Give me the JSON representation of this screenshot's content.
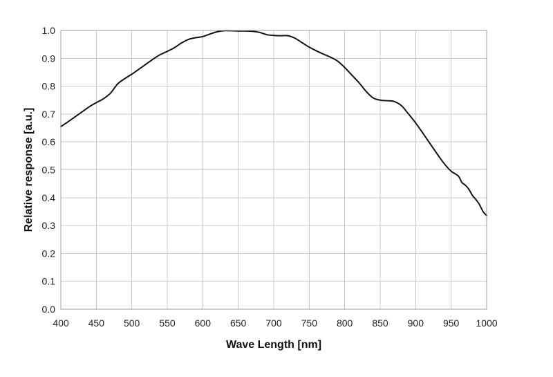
{
  "chart_data": {
    "type": "line",
    "title": "",
    "xlabel": "Wave Length [nm]",
    "ylabel": "Relative response [a.u.]",
    "xlim": [
      400,
      1000
    ],
    "ylim": [
      0.0,
      1.0
    ],
    "x_ticks": [
      "400",
      "450",
      "500",
      "550",
      "600",
      "650",
      "700",
      "750",
      "800",
      "850",
      "900",
      "950",
      "1000"
    ],
    "y_ticks": [
      "0.0",
      "0.1",
      "0.2",
      "0.3",
      "0.4",
      "0.5",
      "0.6",
      "0.7",
      "0.8",
      "0.9",
      "1.0"
    ],
    "grid": true,
    "legend": "none",
    "series": [
      {
        "color": "#111111",
        "x": [
          400,
          410,
          420,
          430,
          440,
          450,
          460,
          470,
          480,
          490,
          500,
          510,
          520,
          530,
          540,
          550,
          560,
          570,
          580,
          590,
          600,
          610,
          620,
          630,
          640,
          650,
          660,
          670,
          680,
          690,
          700,
          710,
          720,
          730,
          740,
          750,
          760,
          770,
          780,
          790,
          800,
          810,
          820,
          830,
          840,
          850,
          860,
          870,
          880,
          890,
          900,
          910,
          920,
          930,
          940,
          950,
          960,
          965,
          970,
          975,
          980,
          985,
          990,
          995,
          1000
        ],
        "y": [
          0.655,
          0.672,
          0.69,
          0.708,
          0.726,
          0.741,
          0.755,
          0.775,
          0.808,
          0.827,
          0.843,
          0.861,
          0.879,
          0.897,
          0.913,
          0.925,
          0.938,
          0.955,
          0.968,
          0.974,
          0.978,
          0.987,
          0.995,
          0.999,
          0.999,
          0.998,
          0.998,
          0.997,
          0.993,
          0.985,
          0.982,
          0.981,
          0.981,
          0.972,
          0.956,
          0.94,
          0.927,
          0.915,
          0.904,
          0.89,
          0.867,
          0.84,
          0.813,
          0.782,
          0.758,
          0.75,
          0.748,
          0.745,
          0.73,
          0.7,
          0.668,
          0.632,
          0.595,
          0.558,
          0.523,
          0.495,
          0.478,
          0.455,
          0.445,
          0.43,
          0.408,
          0.393,
          0.375,
          0.35,
          0.336
        ]
      }
    ]
  }
}
